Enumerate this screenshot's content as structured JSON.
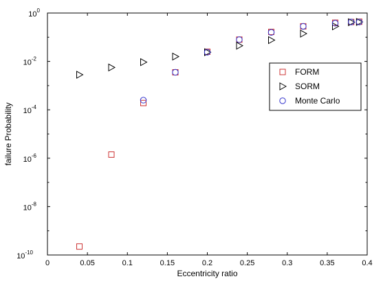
{
  "chart_data": {
    "type": "scatter",
    "title": "",
    "xlabel": "Eccentricity ratio",
    "ylabel": "failure Probability",
    "xlim": [
      0,
      0.4
    ],
    "ylim_exponent": [
      -10,
      0
    ],
    "yscale": "log",
    "grid": false,
    "legend_position": "right",
    "x_ticks": [
      "0",
      "0.05",
      "0.1",
      "0.15",
      "0.2",
      "0.25",
      "0.3",
      "0.35",
      "0.4"
    ],
    "y_tick_base": "10",
    "y_tick_exponents": [
      "-10",
      "-8",
      "-6",
      "-4",
      "-2",
      "0"
    ],
    "series": [
      {
        "name": "FORM",
        "marker": "square",
        "color": "#cc3333",
        "points": [
          {
            "x": 0.04,
            "logy": -9.65
          },
          {
            "x": 0.08,
            "logy": -5.85
          },
          {
            "x": 0.12,
            "logy": -3.72
          },
          {
            "x": 0.16,
            "logy": -2.45
          },
          {
            "x": 0.2,
            "logy": -1.6
          },
          {
            "x": 0.24,
            "logy": -1.1
          },
          {
            "x": 0.28,
            "logy": -0.78
          },
          {
            "x": 0.32,
            "logy": -0.55
          },
          {
            "x": 0.36,
            "logy": -0.4
          },
          {
            "x": 0.38,
            "logy": -0.37
          },
          {
            "x": 0.39,
            "logy": -0.36
          }
        ]
      },
      {
        "name": "SORM",
        "marker": "triangle-right",
        "color": "#000000",
        "points": [
          {
            "x": 0.04,
            "logy": -2.55
          },
          {
            "x": 0.08,
            "logy": -2.25
          },
          {
            "x": 0.12,
            "logy": -2.03
          },
          {
            "x": 0.16,
            "logy": -1.8
          },
          {
            "x": 0.2,
            "logy": -1.62
          },
          {
            "x": 0.24,
            "logy": -1.35
          },
          {
            "x": 0.28,
            "logy": -1.12
          },
          {
            "x": 0.32,
            "logy": -0.85
          },
          {
            "x": 0.36,
            "logy": -0.55
          },
          {
            "x": 0.38,
            "logy": -0.38
          },
          {
            "x": 0.39,
            "logy": -0.37
          }
        ]
      },
      {
        "name": "Monte Carlo",
        "marker": "circle",
        "color": "#3333cc",
        "points": [
          {
            "x": 0.12,
            "logy": -3.6
          },
          {
            "x": 0.16,
            "logy": -2.45
          },
          {
            "x": 0.2,
            "logy": -1.62
          },
          {
            "x": 0.24,
            "logy": -1.1
          },
          {
            "x": 0.28,
            "logy": -0.8
          },
          {
            "x": 0.32,
            "logy": -0.55
          },
          {
            "x": 0.36,
            "logy": -0.42
          },
          {
            "x": 0.38,
            "logy": -0.37
          },
          {
            "x": 0.39,
            "logy": -0.37
          }
        ]
      }
    ]
  }
}
